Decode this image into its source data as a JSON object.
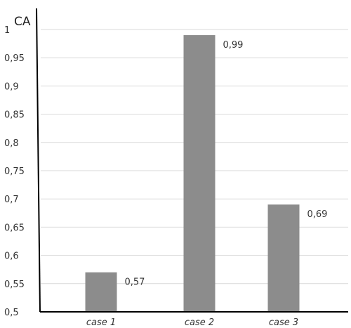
{
  "chart_data": {
    "type": "bar",
    "title": "",
    "xlabel": "",
    "ylabel": "CA",
    "categories": [
      "case 1",
      "case 2",
      "case 3"
    ],
    "values": [
      0.57,
      0.99,
      0.69
    ],
    "data_labels": [
      "0,57",
      "0,99",
      "0,69"
    ],
    "ylim": [
      0.5,
      1.0
    ],
    "yticks": [
      0.5,
      0.55,
      0.6,
      0.65,
      0.7,
      0.75,
      0.8,
      0.85,
      0.9,
      0.95,
      1.0
    ],
    "ytick_labels": [
      "0,5",
      "0,55",
      "0,6",
      "0,65",
      "0,7",
      "0,75",
      "0,8",
      "0,85",
      "0,9",
      "0,95",
      "1"
    ],
    "grid": true,
    "legend": "none",
    "bar_color": "#8c8c8c",
    "gridline_color": "#d9d9d9",
    "axis_color": "#000000"
  }
}
